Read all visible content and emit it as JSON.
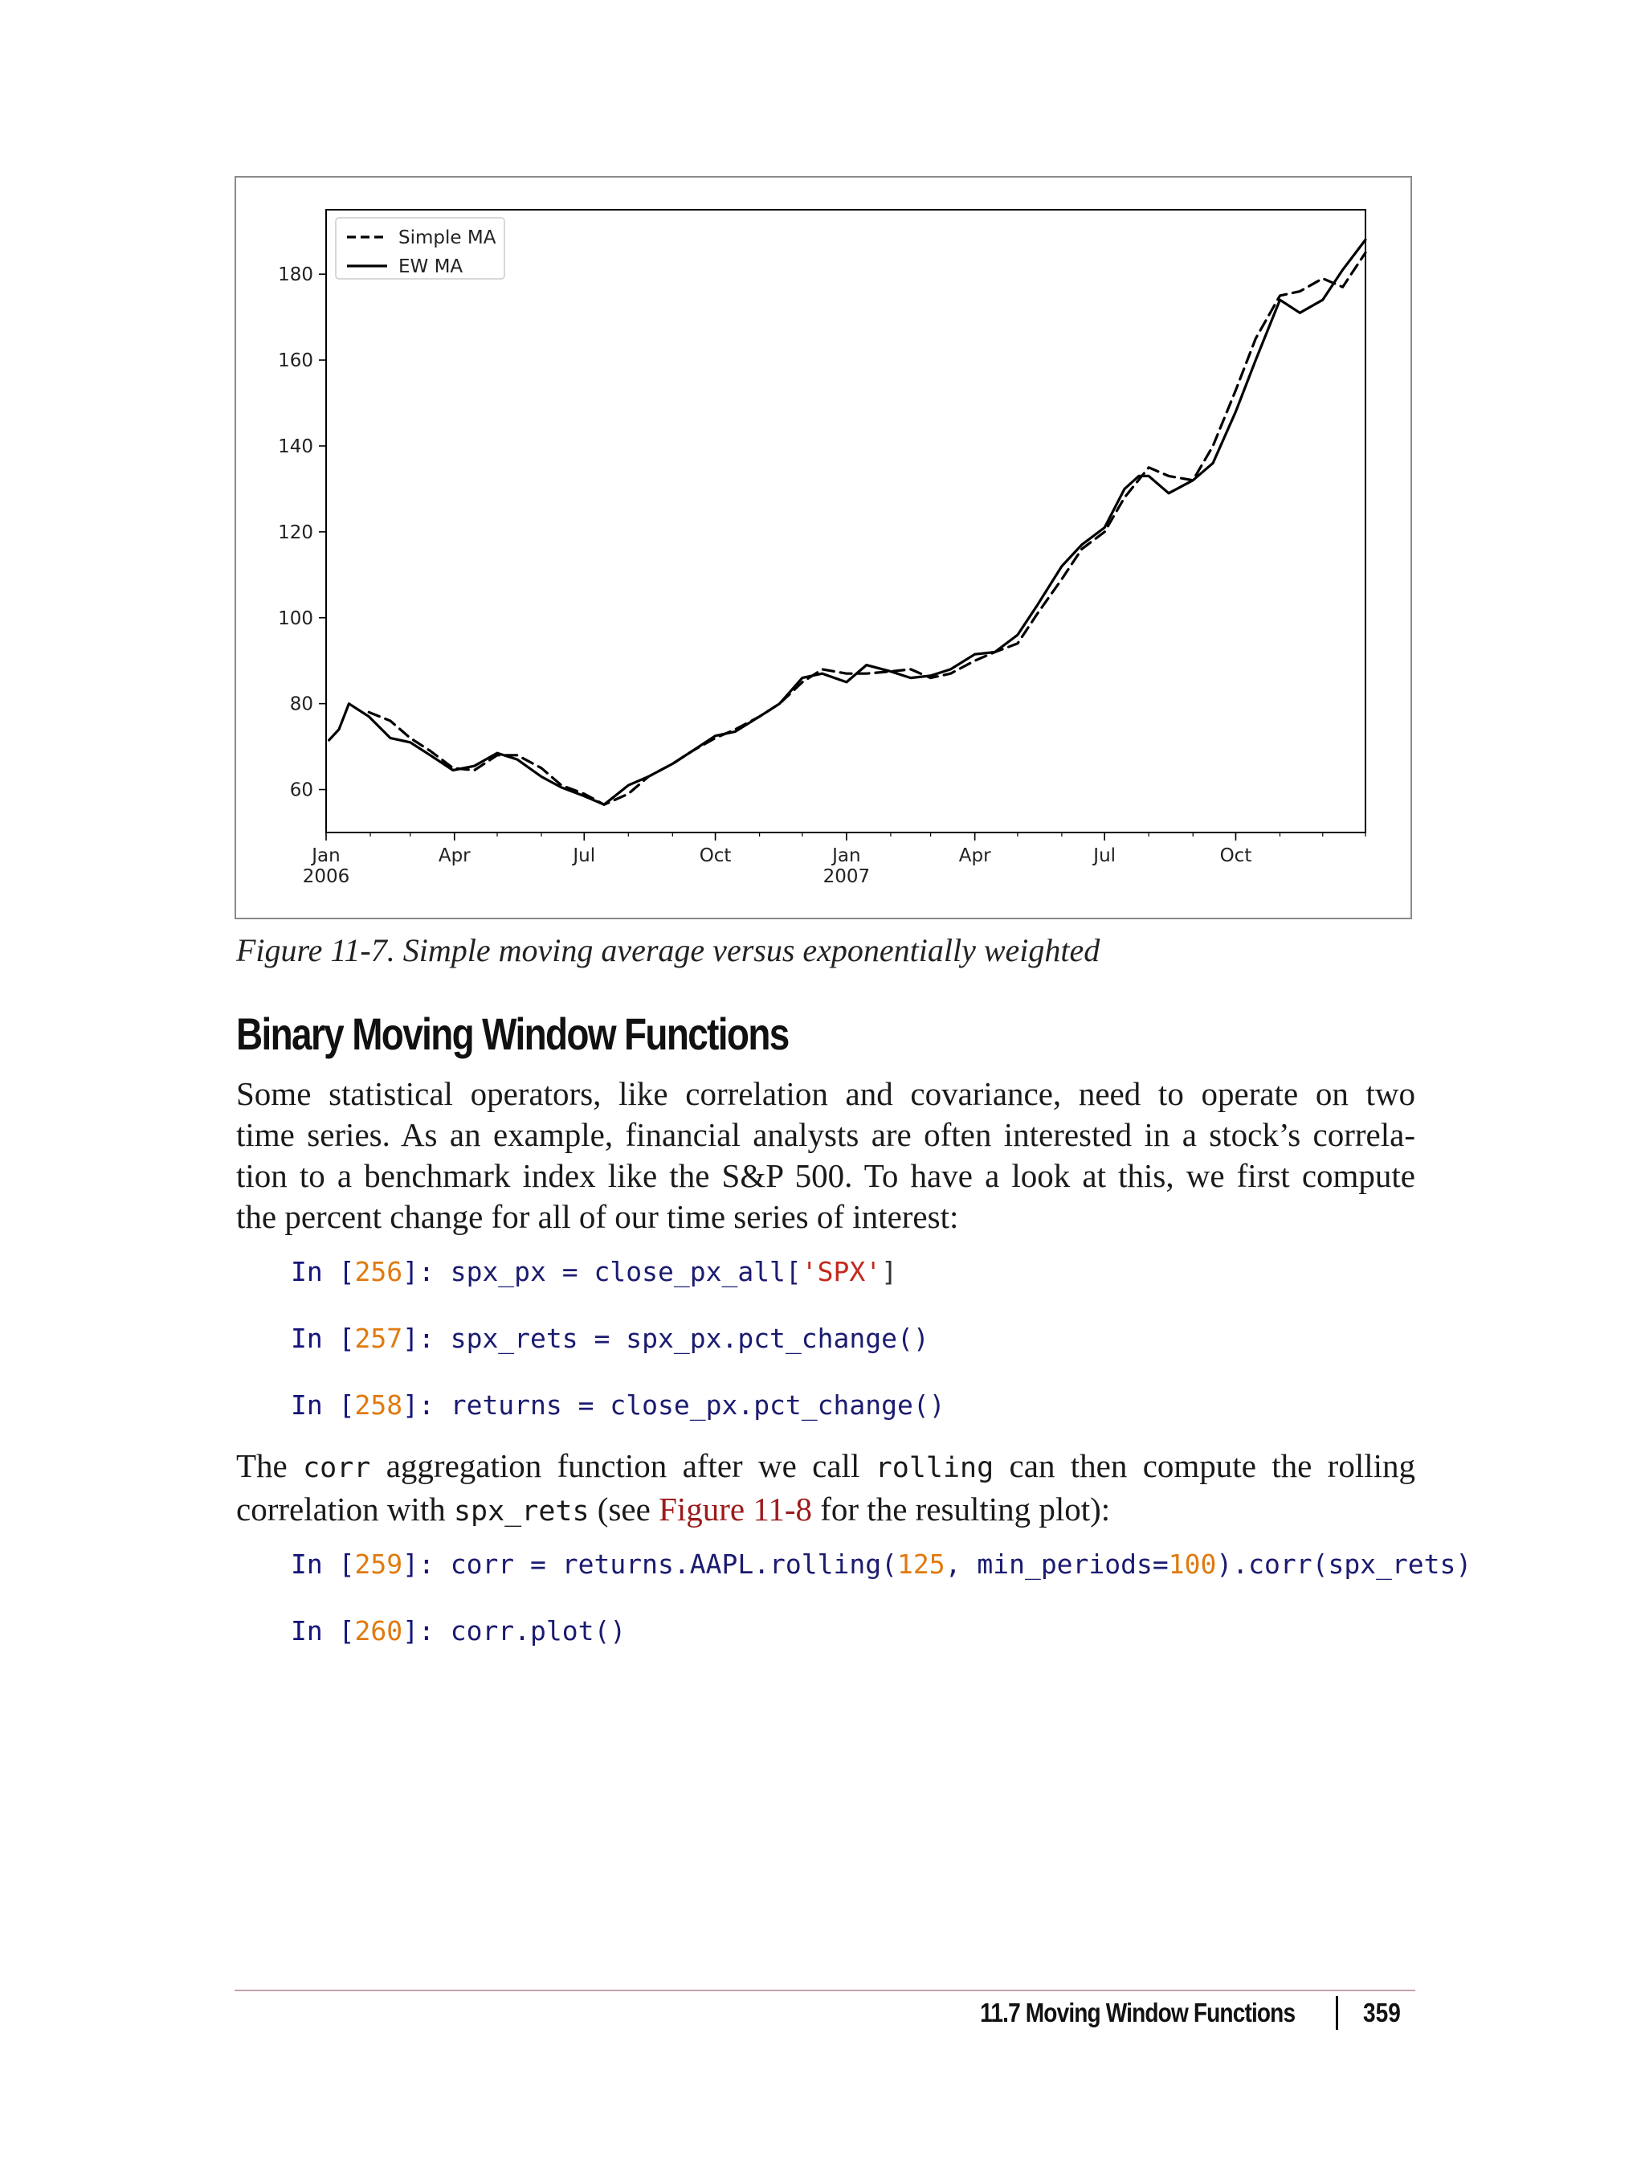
{
  "figure": {
    "caption": "Figure 11-7. Simple moving average versus exponentially weighted"
  },
  "chart_data": {
    "type": "line",
    "title": "",
    "xlabel": "",
    "ylabel": "",
    "ylim": [
      50,
      195
    ],
    "yticks": [
      60,
      80,
      100,
      120,
      140,
      160,
      180
    ],
    "xlim": [
      "2006-01-01",
      "2007-12-31"
    ],
    "xtick_labels": [
      {
        "date": "2006-01-01",
        "label": "Jan",
        "sublabel": "2006"
      },
      {
        "date": "2006-04-01",
        "label": "Apr",
        "sublabel": ""
      },
      {
        "date": "2006-07-01",
        "label": "Jul",
        "sublabel": ""
      },
      {
        "date": "2006-10-01",
        "label": "Oct",
        "sublabel": ""
      },
      {
        "date": "2007-01-01",
        "label": "Jan",
        "sublabel": "2007"
      },
      {
        "date": "2007-04-01",
        "label": "Apr",
        "sublabel": ""
      },
      {
        "date": "2007-07-01",
        "label": "Jul",
        "sublabel": ""
      },
      {
        "date": "2007-10-01",
        "label": "Oct",
        "sublabel": ""
      }
    ],
    "grid": false,
    "legend": "top-left",
    "series": [
      {
        "name": "Simple MA",
        "style": "dashed",
        "color": "#000000",
        "points": [
          [
            "2006-01-31",
            78
          ],
          [
            "2006-02-15",
            76
          ],
          [
            "2006-03-01",
            72
          ],
          [
            "2006-03-15",
            69
          ],
          [
            "2006-03-31",
            65
          ],
          [
            "2006-04-15",
            64.5
          ],
          [
            "2006-05-01",
            68
          ],
          [
            "2006-05-15",
            68
          ],
          [
            "2006-06-01",
            65
          ],
          [
            "2006-06-15",
            61
          ],
          [
            "2006-07-01",
            59
          ],
          [
            "2006-07-15",
            56.5
          ],
          [
            "2006-08-01",
            59
          ],
          [
            "2006-08-15",
            63
          ],
          [
            "2006-09-01",
            66
          ],
          [
            "2006-09-15",
            69
          ],
          [
            "2006-10-01",
            72
          ],
          [
            "2006-10-15",
            74
          ],
          [
            "2006-11-01",
            77
          ],
          [
            "2006-11-15",
            80
          ],
          [
            "2006-12-01",
            85
          ],
          [
            "2006-12-15",
            88
          ],
          [
            "2007-01-01",
            87
          ],
          [
            "2007-01-15",
            87
          ],
          [
            "2007-02-01",
            87.5
          ],
          [
            "2007-02-15",
            88
          ],
          [
            "2007-03-01",
            86
          ],
          [
            "2007-03-15",
            87
          ],
          [
            "2007-04-01",
            90
          ],
          [
            "2007-04-15",
            92
          ],
          [
            "2007-05-01",
            94
          ],
          [
            "2007-05-15",
            101
          ],
          [
            "2007-06-01",
            109
          ],
          [
            "2007-06-15",
            116
          ],
          [
            "2007-07-01",
            120
          ],
          [
            "2007-07-15",
            128
          ],
          [
            "2007-08-01",
            135
          ],
          [
            "2007-08-15",
            133
          ],
          [
            "2007-09-01",
            132
          ],
          [
            "2007-09-15",
            140
          ],
          [
            "2007-10-01",
            153
          ],
          [
            "2007-10-15",
            165
          ],
          [
            "2007-11-01",
            175
          ],
          [
            "2007-11-15",
            176
          ],
          [
            "2007-12-01",
            179
          ],
          [
            "2007-12-15",
            177
          ],
          [
            "2007-12-31",
            185
          ]
        ]
      },
      {
        "name": "EW MA",
        "style": "solid",
        "color": "#000000",
        "points": [
          [
            "2006-01-03",
            71.5
          ],
          [
            "2006-01-10",
            74
          ],
          [
            "2006-01-17",
            80
          ],
          [
            "2006-01-31",
            77
          ],
          [
            "2006-02-15",
            72
          ],
          [
            "2006-03-01",
            71
          ],
          [
            "2006-03-15",
            68
          ],
          [
            "2006-03-31",
            64.5
          ],
          [
            "2006-04-15",
            65.5
          ],
          [
            "2006-05-01",
            68.5
          ],
          [
            "2006-05-15",
            67
          ],
          [
            "2006-06-01",
            63
          ],
          [
            "2006-06-15",
            60.5
          ],
          [
            "2006-07-01",
            58.5
          ],
          [
            "2006-07-15",
            56.5
          ],
          [
            "2006-08-01",
            61
          ],
          [
            "2006-08-15",
            63
          ],
          [
            "2006-09-01",
            66
          ],
          [
            "2006-09-15",
            69
          ],
          [
            "2006-10-01",
            72.5
          ],
          [
            "2006-10-15",
            73.5
          ],
          [
            "2006-11-01",
            77
          ],
          [
            "2006-11-15",
            80
          ],
          [
            "2006-12-01",
            86
          ],
          [
            "2006-12-15",
            87
          ],
          [
            "2007-01-01",
            85
          ],
          [
            "2007-01-15",
            89
          ],
          [
            "2007-02-01",
            87.5
          ],
          [
            "2007-02-15",
            86
          ],
          [
            "2007-03-01",
            86.5
          ],
          [
            "2007-03-15",
            88
          ],
          [
            "2007-04-01",
            91.5
          ],
          [
            "2007-04-15",
            92
          ],
          [
            "2007-05-01",
            96
          ],
          [
            "2007-05-15",
            103
          ],
          [
            "2007-06-01",
            112
          ],
          [
            "2007-06-15",
            117
          ],
          [
            "2007-07-01",
            121
          ],
          [
            "2007-07-15",
            130
          ],
          [
            "2007-07-25",
            133
          ],
          [
            "2007-08-01",
            133
          ],
          [
            "2007-08-15",
            129
          ],
          [
            "2007-09-01",
            132
          ],
          [
            "2007-09-15",
            136
          ],
          [
            "2007-10-01",
            148
          ],
          [
            "2007-10-15",
            160
          ],
          [
            "2007-11-01",
            174
          ],
          [
            "2007-11-15",
            171
          ],
          [
            "2007-12-01",
            174
          ],
          [
            "2007-12-15",
            181
          ],
          [
            "2007-12-31",
            188
          ]
        ]
      }
    ]
  },
  "section": {
    "heading": "Binary Moving Window Functions"
  },
  "paragraph1": {
    "lines": [
      "Some statistical operators, like correlation and covariance, need to operate on two",
      "time series. As an example, financial analysts are often interested in a stock’s correla-",
      "tion to a benchmark index like the S&P 500. To have a look at this, we first compute",
      "the percent change for all of our time series of interest:"
    ]
  },
  "code1": {
    "line1": {
      "prompt": "In [",
      "num": "256",
      "close": "]: ",
      "code_a": "spx_px = close_px_all[",
      "str": "'SPX'",
      "code_b": "]"
    },
    "line2": {
      "prompt": "In [",
      "num": "257",
      "close": "]: ",
      "code_a": "spx_rets = spx_px.pct_change()"
    },
    "line3": {
      "prompt": "In [",
      "num": "258",
      "close": "]: ",
      "code_a": "returns = close_px.pct_change()"
    }
  },
  "paragraph2": {
    "line1_a": "The ",
    "line1_code1": "corr",
    "line1_b": " aggregation function after we call ",
    "line1_code2": "rolling",
    "line1_c": " can then compute the rolling",
    "line2_a": "correlation with ",
    "line2_code": "spx_rets",
    "line2_b": " (see ",
    "line2_xref": "Figure 11-8",
    "line2_c": " for the resulting plot):"
  },
  "code2": {
    "line1": {
      "prompt": "In [",
      "num": "259",
      "close": "]: ",
      "code_a": "corr = returns.AAPL.rolling(",
      "num2": "125",
      "code_b": ", min_periods=",
      "num3": "100",
      "code_c": ").corr(spx_rets)"
    },
    "line2": {
      "prompt": "In [",
      "num": "260",
      "close": "]: ",
      "code_a": "corr.plot()"
    }
  },
  "footer": {
    "section_title": "11.7 Moving Window Functions",
    "page_number": "359"
  }
}
